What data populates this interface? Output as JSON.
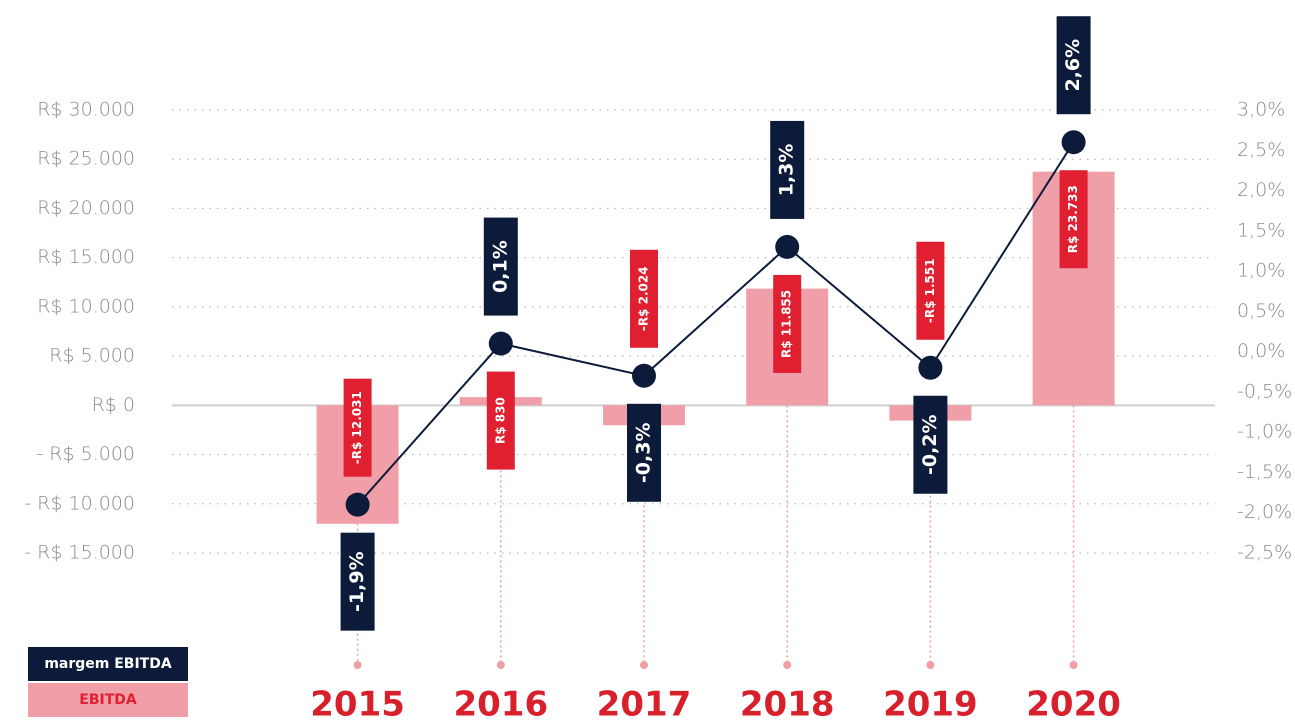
{
  "chart_data": {
    "type": "bar",
    "categories": [
      "2015",
      "2016",
      "2017",
      "2018",
      "2019",
      "2020"
    ],
    "series": [
      {
        "name": "EBITDA",
        "color": "#f09ea8",
        "values": [
          -12031,
          830,
          -2024,
          11855,
          -1551,
          23733
        ],
        "value_labels": [
          "-R$ 12.031",
          "R$ 830",
          "-R$ 2.024",
          "R$ 11.855",
          "-R$ 1.551",
          "R$ 23.733"
        ]
      },
      {
        "name": "margem EBITDA",
        "color": "#0d1b3a",
        "axis": "y2",
        "values": [
          -1.9,
          0.1,
          -0.3,
          1.3,
          -0.2,
          2.6
        ],
        "value_labels": [
          "-1,9%",
          "0,1%",
          "-0,3%",
          "1,3%",
          "-0,2%",
          "2,6%"
        ]
      }
    ],
    "ylim": [
      -15000,
      30000
    ],
    "yticks": [
      {
        "value": -15000,
        "label": "- R$ 15.000"
      },
      {
        "value": -10000,
        "label": "- R$ 10.000"
      },
      {
        "value": -5000,
        "label": "- R$ 5.000"
      },
      {
        "value": 0,
        "label": "R$ 0"
      },
      {
        "value": 5000,
        "label": "R$ 5.000"
      },
      {
        "value": 10000,
        "label": "R$ 10.000"
      },
      {
        "value": 15000,
        "label": "R$ 15.000"
      },
      {
        "value": 20000,
        "label": "R$ 20.000"
      },
      {
        "value": 25000,
        "label": "R$ 25.000"
      },
      {
        "value": 30000,
        "label": "R$ 30.000"
      }
    ],
    "y2lim": [
      -2.5,
      3.0
    ],
    "y2ticks": [
      {
        "value": -2.5,
        "label": "-2,5%"
      },
      {
        "value": -2.0,
        "label": "-2,0%"
      },
      {
        "value": -1.5,
        "label": "-1,5%"
      },
      {
        "value": -1.0,
        "label": "-1,0%"
      },
      {
        "value": -0.5,
        "label": "-0,5%"
      },
      {
        "value": 0.0,
        "label": "0,0%"
      },
      {
        "value": 0.5,
        "label": "0,5%"
      },
      {
        "value": 1.0,
        "label": "1,0%"
      },
      {
        "value": 1.5,
        "label": "1,5%"
      },
      {
        "value": 2.0,
        "label": "2,0%"
      },
      {
        "value": 2.5,
        "label": "2,5%"
      },
      {
        "value": 3.0,
        "label": "3,0%"
      }
    ],
    "grid": true
  }
}
